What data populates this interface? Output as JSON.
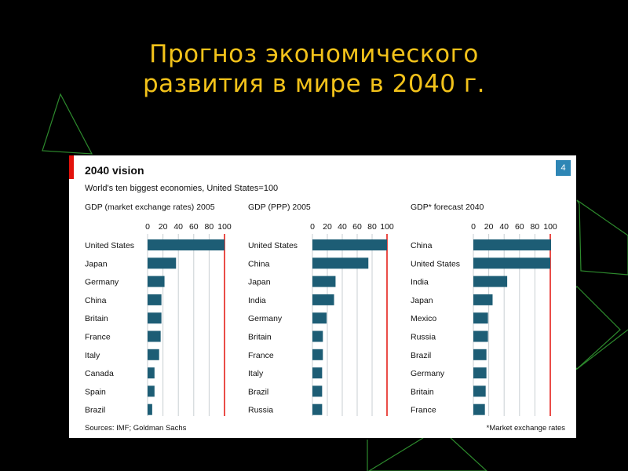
{
  "slide": {
    "title_line1": "Прогноз экономического",
    "title_line2": "развития в мире в 2040 г."
  },
  "card": {
    "title": "2040 vision",
    "subtitle": "World's ten biggest economies, United States=100",
    "badge": "4",
    "source": "Sources: IMF; Goldman Sachs",
    "footnote": "*Market exchange rates"
  },
  "colors": {
    "background": "#000000",
    "title": "#f2c21a",
    "bar": "#1d5d75",
    "reference_line": "#e3120b",
    "accent": "#e3120b",
    "badge": "#2e86b5",
    "decoration": "#2d8a2d"
  },
  "chart_data": [
    {
      "type": "bar",
      "orientation": "horizontal",
      "title": "GDP (market exchange rates) 2005",
      "xlim": [
        0,
        100
      ],
      "xticks": [
        0,
        20,
        40,
        60,
        80,
        100
      ],
      "categories": [
        "United States",
        "Japan",
        "Germany",
        "China",
        "Britain",
        "France",
        "Italy",
        "Canada",
        "Spain",
        "Brazil"
      ],
      "values": [
        100,
        37,
        22,
        18,
        18,
        17,
        15,
        9,
        9,
        6
      ]
    },
    {
      "type": "bar",
      "orientation": "horizontal",
      "title": "GDP (PPP) 2005",
      "xlim": [
        0,
        100
      ],
      "xticks": [
        0,
        20,
        40,
        60,
        80,
        100
      ],
      "categories": [
        "United States",
        "China",
        "Japan",
        "India",
        "Germany",
        "Britain",
        "France",
        "Italy",
        "Brazil",
        "Russia"
      ],
      "values": [
        100,
        75,
        31,
        29,
        19,
        14,
        14,
        13,
        13,
        13
      ]
    },
    {
      "type": "bar",
      "orientation": "horizontal",
      "title": "GDP* forecast 2040",
      "xlim": [
        0,
        100
      ],
      "xticks": [
        0,
        20,
        40,
        60,
        80,
        100
      ],
      "categories": [
        "China",
        "United States",
        "India",
        "Japan",
        "Mexico",
        "Russia",
        "Brazil",
        "Germany",
        "Britain",
        "France"
      ],
      "values": [
        101,
        100,
        44,
        25,
        19,
        19,
        17,
        17,
        16,
        15
      ]
    }
  ]
}
